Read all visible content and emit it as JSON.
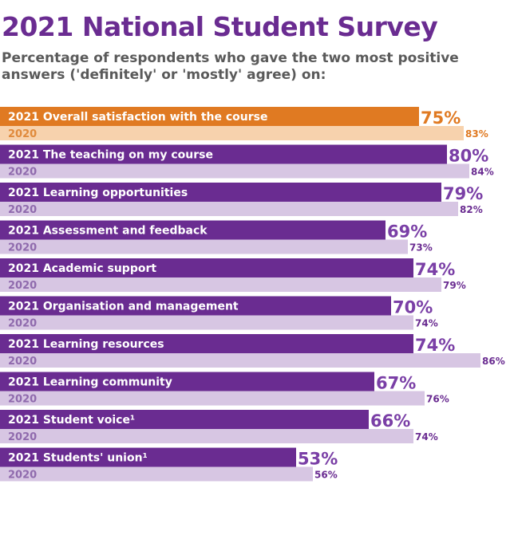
{
  "title": "2021 National Student Survey",
  "subtitle": "Percentage of respondents who gave the two most positive answers ('definitely' or 'mostly' agree) on:",
  "colors": {
    "title": "#6a2c91",
    "subtitle": "#5a5a5a",
    "bar_2021": "#6a2c91",
    "bar_2020": "#d7c6e3",
    "label_2021": "#7a3fa6",
    "label_2020": "#6a2c91",
    "highlight_2021": "#e07a22",
    "highlight_2020": "#f7d2ad",
    "highlight_label": "#e07a22",
    "year_2020_text": "#8f6aad"
  },
  "chart_data": {
    "type": "bar",
    "orientation": "horizontal",
    "xlim": [
      0,
      100
    ],
    "year_labels": [
      "2021",
      "2020"
    ],
    "highlight_index": 0,
    "categories": [
      "Overall satisfaction with the course",
      "The teaching on my course",
      "Learning opportunities",
      "Assessment and feedback",
      "Academic support",
      "Organisation and management",
      "Learning resources",
      "Learning community",
      "Student voice¹",
      "Students' union¹"
    ],
    "series": [
      {
        "name": "2021",
        "values": [
          75,
          80,
          79,
          69,
          74,
          70,
          74,
          67,
          66,
          53
        ]
      },
      {
        "name": "2020",
        "values": [
          83,
          84,
          82,
          73,
          79,
          74,
          86,
          76,
          74,
          56
        ]
      }
    ]
  }
}
